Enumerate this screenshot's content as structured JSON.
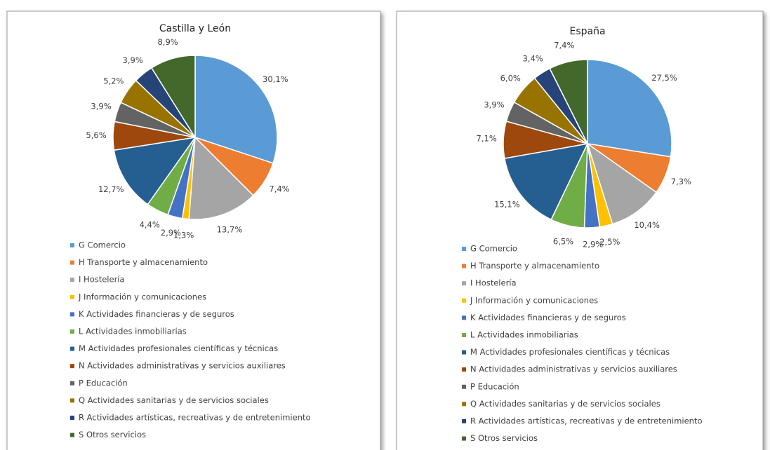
{
  "chart_data": [
    {
      "type": "pie",
      "title": "Castilla y León",
      "categories": [
        "G Comercio",
        "H Transporte y almacenamiento",
        "I Hostelería",
        "J Información y comunicaciones",
        "K Actividades financieras y de seguros",
        "L Actividades inmobiliarias",
        "M Actividades profesionales científicas y técnicas",
        "N Actividades administrativas y servicios auxiliares",
        "P Educación",
        "Q Actividades sanitarias y de servicios sociales",
        "R Actividades artísticas, recreativas y de entretenimiento",
        "S Otros servicios"
      ],
      "values": [
        30.1,
        7.4,
        13.7,
        1.3,
        2.9,
        4.4,
        12.7,
        5.6,
        3.9,
        5.2,
        3.9,
        8.9
      ],
      "value_labels": [
        "30,1%",
        "7,4%",
        "13,7%",
        "1,3%",
        "2,9%",
        "4,4%",
        "12,7%",
        "5,6%",
        "3,9%",
        "5,2%",
        "3,9%",
        "8,9%"
      ],
      "colors": [
        "#5b9bd5",
        "#ed7d31",
        "#a5a5a5",
        "#ffc000",
        "#4472c4",
        "#70ad47",
        "#255e91",
        "#9e480e",
        "#636363",
        "#997300",
        "#264478",
        "#43682b"
      ]
    },
    {
      "type": "pie",
      "title": "España",
      "categories": [
        "G Comercio",
        "H Transporte y almacenamiento",
        "I Hostelería",
        "J Información y comunicaciones",
        "K Actividades financieras y de seguros",
        "L Actividades inmobiliarias",
        "M Actividades profesionales científicas y técnicas",
        "N Actividades administrativas y servicios auxiliares",
        "P Educación",
        "Q Actividades sanitarias y de servicios sociales",
        "R Actividades artísticas, recreativas y de entretenimiento",
        "S Otros servicios"
      ],
      "values": [
        27.5,
        7.3,
        10.4,
        2.5,
        2.9,
        6.5,
        15.1,
        7.1,
        3.9,
        6.0,
        3.4,
        7.4
      ],
      "value_labels": [
        "27,5%",
        "7,3%",
        "10,4%",
        "2,5%",
        "2,9%",
        "6,5%",
        "15,1%",
        "7,1%",
        "3,9%",
        "6,0%",
        "3,4%",
        "7,4%"
      ],
      "colors": [
        "#5b9bd5",
        "#ed7d31",
        "#a5a5a5",
        "#ffc000",
        "#4472c4",
        "#70ad47",
        "#255e91",
        "#9e480e",
        "#636363",
        "#997300",
        "#264478",
        "#43682b"
      ]
    }
  ]
}
